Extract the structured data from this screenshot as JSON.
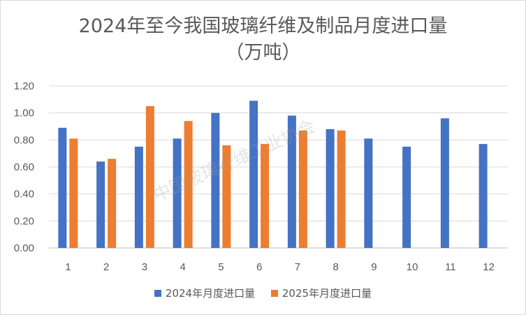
{
  "chart_data": {
    "type": "bar",
    "title": "2024年至今我国玻璃纤维及制品月度进口量",
    "subtitle": "（万吨）",
    "categories": [
      "1",
      "2",
      "3",
      "4",
      "5",
      "6",
      "7",
      "8",
      "9",
      "10",
      "11",
      "12"
    ],
    "series": [
      {
        "name": "2024年月度进口量",
        "color": "#4472c4",
        "values": [
          0.89,
          0.64,
          0.75,
          0.81,
          1.0,
          1.09,
          0.98,
          0.88,
          0.81,
          0.75,
          0.96,
          0.77
        ]
      },
      {
        "name": "2025年月度进口量",
        "color": "#ed7d31",
        "values": [
          0.81,
          0.66,
          1.05,
          0.94,
          0.76,
          0.77,
          0.87,
          0.87,
          null,
          null,
          null,
          null
        ]
      }
    ],
    "ylim": [
      0,
      1.2
    ],
    "yticks": [
      "0.00",
      "0.20",
      "0.40",
      "0.60",
      "0.80",
      "1.00",
      "1.20"
    ],
    "grid": true,
    "legend_position": "bottom",
    "watermark": "中国玻璃纤维工业协会"
  }
}
